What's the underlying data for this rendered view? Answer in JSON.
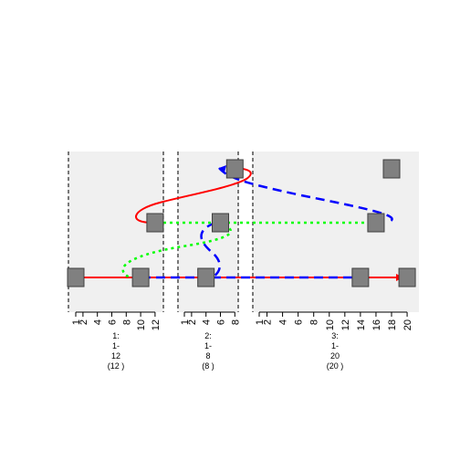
{
  "colors": {
    "panel_bg": "#f0f0f0",
    "node_fill": "#808080",
    "node_stroke": "#404040",
    "red": "#ff0000",
    "blue": "#0000ff",
    "green": "#00ff00"
  },
  "segments": [
    {
      "id": "seg1",
      "ticks": [
        "1",
        "2",
        "4",
        "6",
        "8",
        "10",
        "12"
      ],
      "caption": [
        "1:",
        "1-",
        "12",
        "(12 )"
      ]
    },
    {
      "id": "seg2",
      "ticks": [
        "1",
        "2",
        "4",
        "6",
        "8"
      ],
      "caption": [
        "2:",
        "1-",
        "8",
        "(8 )"
      ]
    },
    {
      "id": "seg3",
      "ticks": [
        "1",
        "2",
        "4",
        "6",
        "8",
        "10",
        "12",
        "14",
        "16",
        "18",
        "20"
      ],
      "caption": [
        "3:",
        "1-",
        "20",
        "(20 )"
      ]
    }
  ],
  "nodes": [
    {
      "name": "node-seg1-1-bottom",
      "seg": 0,
      "pos": 1,
      "row": "bottom"
    },
    {
      "name": "node-seg1-10-bottom",
      "seg": 0,
      "pos": 10,
      "row": "bottom"
    },
    {
      "name": "node-seg1-12-middle",
      "seg": 0,
      "pos": 12,
      "row": "middle"
    },
    {
      "name": "node-seg2-4-bottom",
      "seg": 1,
      "pos": 4,
      "row": "bottom"
    },
    {
      "name": "node-seg2-6-middle",
      "seg": 1,
      "pos": 6,
      "row": "middle"
    },
    {
      "name": "node-seg2-8-top",
      "seg": 1,
      "pos": 8,
      "row": "top"
    },
    {
      "name": "node-seg3-14-bottom",
      "seg": 2,
      "pos": 14,
      "row": "bottom"
    },
    {
      "name": "node-seg3-16-middle",
      "seg": 2,
      "pos": 16,
      "row": "middle"
    },
    {
      "name": "node-seg3-18-top",
      "seg": 2,
      "pos": 18,
      "row": "top"
    },
    {
      "name": "node-seg3-20-bottom",
      "seg": 2,
      "pos": 20,
      "row": "bottom"
    }
  ]
}
